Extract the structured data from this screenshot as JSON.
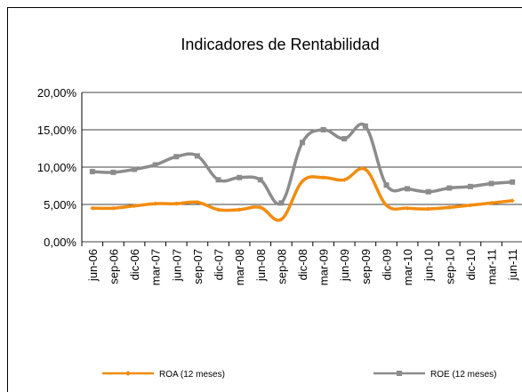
{
  "chart_data": {
    "type": "line",
    "title": "Indicadores de Rentabilidad",
    "categories": [
      "jun-06",
      "sep-06",
      "dic-06",
      "mar-07",
      "jun-07",
      "sep-07",
      "dic-07",
      "mar-08",
      "jun-08",
      "sep-08",
      "dic-08",
      "mar-09",
      "jun-09",
      "sep-09",
      "dic-09",
      "mar-10",
      "jun-10",
      "sep-10",
      "dic-10",
      "mar-11",
      "jun-11"
    ],
    "series": [
      {
        "name": "ROA (12 meses)",
        "color": "#f28c0f",
        "values": [
          4.5,
          4.5,
          4.8,
          5.1,
          5.1,
          5.3,
          4.3,
          4.3,
          4.6,
          3.0,
          8.1,
          8.6,
          8.3,
          9.7,
          4.9,
          4.5,
          4.4,
          4.6,
          4.9,
          5.2,
          5.5
        ]
      },
      {
        "name": "ROE (12 meses)",
        "color": "#8c8c8c",
        "values": [
          9.4,
          9.3,
          9.7,
          10.3,
          11.4,
          11.5,
          8.3,
          8.6,
          8.3,
          5.2,
          13.3,
          15.0,
          13.8,
          15.5,
          7.6,
          7.1,
          6.7,
          7.2,
          7.4,
          7.8,
          8.0
        ]
      }
    ],
    "ylim": [
      0,
      20
    ],
    "yticks": [
      {
        "value": 0,
        "label": "0,00%"
      },
      {
        "value": 5,
        "label": "5,00%"
      },
      {
        "value": 10,
        "label": "10,00%"
      },
      {
        "value": 15,
        "label": "15,00%"
      },
      {
        "value": 20,
        "label": "20,00%"
      }
    ],
    "grid": true,
    "legend": "bottom"
  }
}
